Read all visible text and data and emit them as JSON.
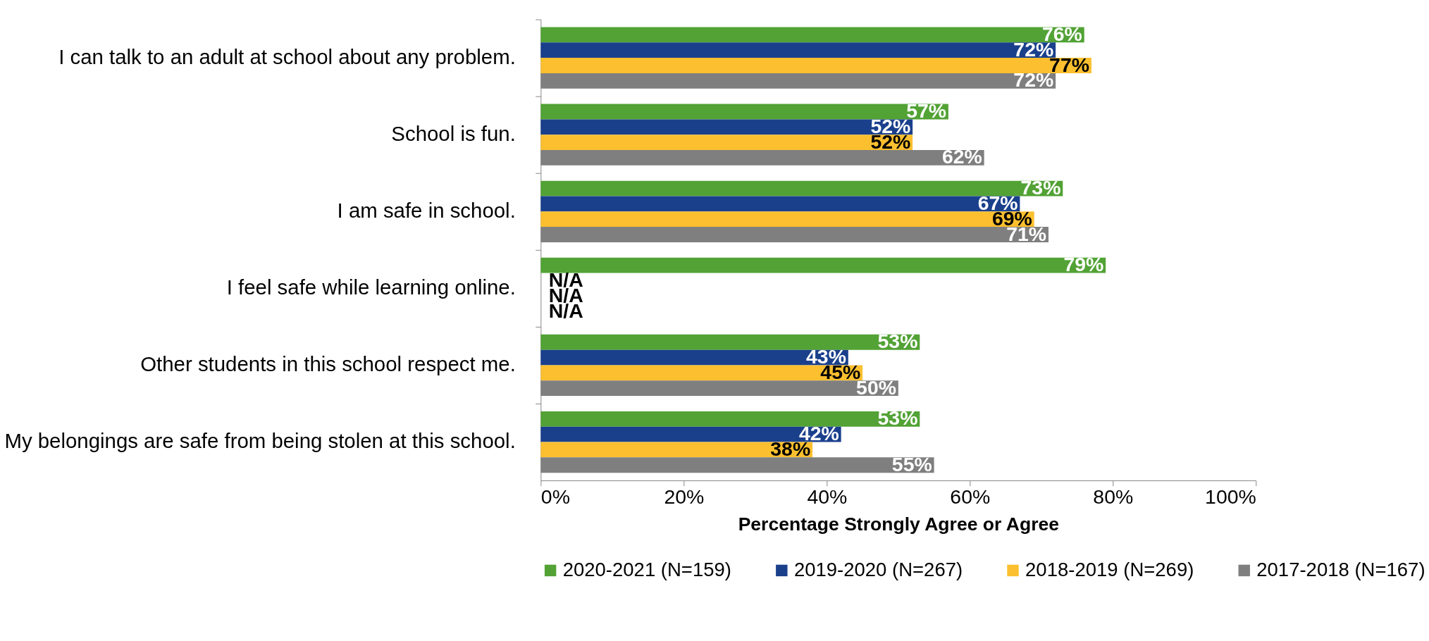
{
  "chart_data": {
    "type": "bar",
    "orientation": "horizontal",
    "xlabel": "Percentage Strongly Agree or Agree",
    "categories": [
      "I can talk to an adult at school about any problem.",
      "School is fun.",
      "I am safe in school.",
      "I feel safe while learning online.",
      "Other students in this school respect me.",
      "My belongings are safe from being stolen at this school."
    ],
    "series": [
      {
        "name": "2020-2021 (N=159)",
        "color": "#52a235",
        "values": [
          76,
          57,
          73,
          79,
          53,
          53
        ],
        "value_labels": [
          "76%",
          "57%",
          "73%",
          "79%",
          "53%",
          "53%"
        ]
      },
      {
        "name": "2019-2020 (N=267)",
        "color": "#1a408c",
        "values": [
          72,
          52,
          67,
          null,
          43,
          42
        ],
        "value_labels": [
          "72%",
          "52%",
          "67%",
          "N/A",
          "43%",
          "42%"
        ]
      },
      {
        "name": "2018-2019 (N=269)",
        "color": "#fbbf2f",
        "values": [
          77,
          52,
          69,
          null,
          45,
          38
        ],
        "value_labels": [
          "77%",
          "52%",
          "69%",
          "N/A",
          "45%",
          "38%"
        ]
      },
      {
        "name": "2017-2018 (N=167)",
        "color": "#7f7f7f",
        "values": [
          72,
          62,
          71,
          null,
          50,
          55
        ],
        "value_labels": [
          "72%",
          "62%",
          "71%",
          "N/A",
          "50%",
          "55%"
        ]
      }
    ],
    "xlim": [
      0,
      100
    ],
    "xticks": [
      {
        "value": 0,
        "label": "0%"
      },
      {
        "value": 20,
        "label": "20%"
      },
      {
        "value": 40,
        "label": "40%"
      },
      {
        "value": 60,
        "label": "60%"
      },
      {
        "value": 80,
        "label": "80%"
      },
      {
        "value": 100,
        "label": "100%"
      }
    ],
    "grid": false,
    "legend": "bottom"
  }
}
